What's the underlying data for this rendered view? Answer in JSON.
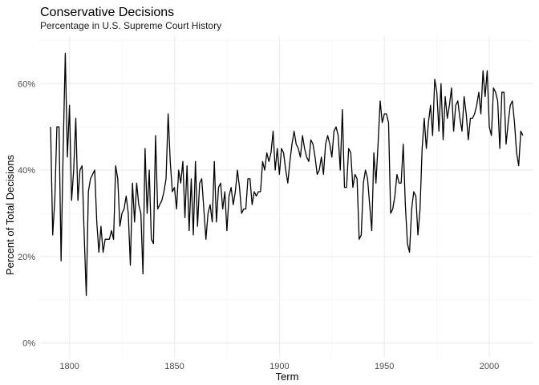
{
  "chart_data": {
    "type": "line",
    "title": "Conservative Decisions",
    "subtitle": "Percentage in U.S. Supreme Court History",
    "xlabel": "Term",
    "ylabel": "Percent of Total Decisions",
    "xlim": [
      1786,
      2021
    ],
    "ylim": [
      -3.4,
      71
    ],
    "x_ticks": [
      1800,
      1850,
      1900,
      1950,
      2000
    ],
    "y_ticks": [
      0,
      20,
      40,
      60
    ],
    "y_tick_labels": [
      "0%",
      "20%",
      "40%",
      "60%"
    ],
    "grid": true,
    "legend": "none",
    "series": [
      {
        "x": [
          1791,
          1792,
          1793,
          1794,
          1795,
          1796,
          1797,
          1798,
          1799,
          1800,
          1801,
          1802,
          1803,
          1804,
          1805,
          1806,
          1807,
          1808,
          1809,
          1810,
          1811,
          1812,
          1813,
          1814,
          1815,
          1816,
          1817,
          1818,
          1819,
          1820,
          1821,
          1822,
          1823,
          1824,
          1825,
          1826,
          1827,
          1828,
          1829,
          1830,
          1831,
          1832,
          1833,
          1834,
          1835,
          1836,
          1837,
          1838,
          1839,
          1840,
          1841,
          1842,
          1843,
          1844,
          1845,
          1846,
          1847,
          1848,
          1849,
          1850,
          1851,
          1852,
          1853,
          1854,
          1855,
          1856,
          1857,
          1858,
          1859,
          1860,
          1861,
          1862,
          1863,
          1864,
          1865,
          1866,
          1867,
          1868,
          1869,
          1870,
          1871,
          1872,
          1873,
          1874,
          1875,
          1876,
          1877,
          1878,
          1879,
          1880,
          1881,
          1882,
          1883,
          1884,
          1885,
          1886,
          1887,
          1888,
          1889,
          1890,
          1891,
          1892,
          1893,
          1894,
          1895,
          1896,
          1897,
          1898,
          1899,
          1900,
          1901,
          1902,
          1903,
          1904,
          1905,
          1906,
          1907,
          1908,
          1909,
          1910,
          1911,
          1912,
          1913,
          1914,
          1915,
          1916,
          1917,
          1918,
          1919,
          1920,
          1921,
          1922,
          1923,
          1924,
          1925,
          1926,
          1927,
          1928,
          1929,
          1930,
          1931,
          1932,
          1933,
          1934,
          1935,
          1936,
          1937,
          1938,
          1939,
          1940,
          1941,
          1942,
          1943,
          1944,
          1945,
          1946,
          1947,
          1948,
          1949,
          1950,
          1951,
          1952,
          1953,
          1954,
          1955,
          1956,
          1957,
          1958,
          1959,
          1960,
          1961,
          1962,
          1963,
          1964,
          1965,
          1966,
          1967,
          1968,
          1969,
          1970,
          1971,
          1972,
          1973,
          1974,
          1975,
          1976,
          1977,
          1978,
          1979,
          1980,
          1981,
          1982,
          1983,
          1984,
          1985,
          1986,
          1987,
          1988,
          1989,
          1990,
          1991,
          1992,
          1993,
          1994,
          1995,
          1996,
          1997,
          1998,
          1999,
          2000,
          2001,
          2002,
          2003,
          2004,
          2005,
          2006,
          2007,
          2008,
          2009,
          2010,
          2011,
          2012,
          2013,
          2014,
          2015,
          2016
        ],
        "values": [
          50,
          25,
          33,
          50,
          50,
          19,
          45,
          67,
          43,
          55,
          33,
          40,
          52,
          33,
          40,
          41,
          25,
          11,
          35,
          38,
          39,
          40,
          28,
          21,
          27,
          21,
          24,
          24,
          24,
          26,
          24,
          41,
          38,
          27,
          30,
          31,
          34,
          30,
          18,
          37,
          28,
          37,
          32,
          30,
          16,
          45,
          30,
          40,
          24,
          23,
          48,
          31,
          32,
          33,
          35,
          38,
          53,
          42,
          35,
          36,
          31,
          40,
          37,
          42,
          29,
          41,
          26,
          38,
          25,
          42,
          27,
          37,
          38,
          31,
          24,
          30,
          32,
          28,
          42,
          28,
          36,
          37,
          31,
          35,
          26,
          34,
          36,
          32,
          35,
          40,
          36,
          30,
          31,
          31,
          38,
          38,
          32,
          35,
          34,
          35,
          35,
          42,
          40,
          44,
          42,
          44,
          49,
          40,
          45,
          39,
          45,
          44,
          40,
          37,
          42,
          46,
          49,
          46,
          45,
          43,
          48,
          45,
          43,
          42,
          47,
          46,
          43,
          39,
          40,
          43,
          39,
          46,
          48,
          46,
          43,
          49,
          50,
          48,
          40,
          54,
          36,
          36,
          45,
          44,
          36,
          39,
          38,
          24,
          25,
          37,
          40,
          38,
          32,
          26,
          44,
          37,
          46,
          56,
          51,
          53,
          53,
          51,
          30,
          31,
          34,
          39,
          37,
          37,
          46,
          32,
          23,
          21,
          31,
          35,
          34,
          25,
          31,
          45,
          52,
          45,
          51,
          55,
          48,
          61,
          58,
          49,
          60,
          47,
          57,
          52,
          55,
          59,
          49,
          55,
          56,
          52,
          49,
          57,
          53,
          47,
          52,
          52,
          53,
          55,
          58,
          53,
          63,
          57,
          63,
          50,
          48,
          59,
          58,
          56,
          45,
          58,
          58,
          46,
          51,
          55,
          56,
          51,
          44,
          41,
          49,
          48
        ]
      }
    ]
  }
}
